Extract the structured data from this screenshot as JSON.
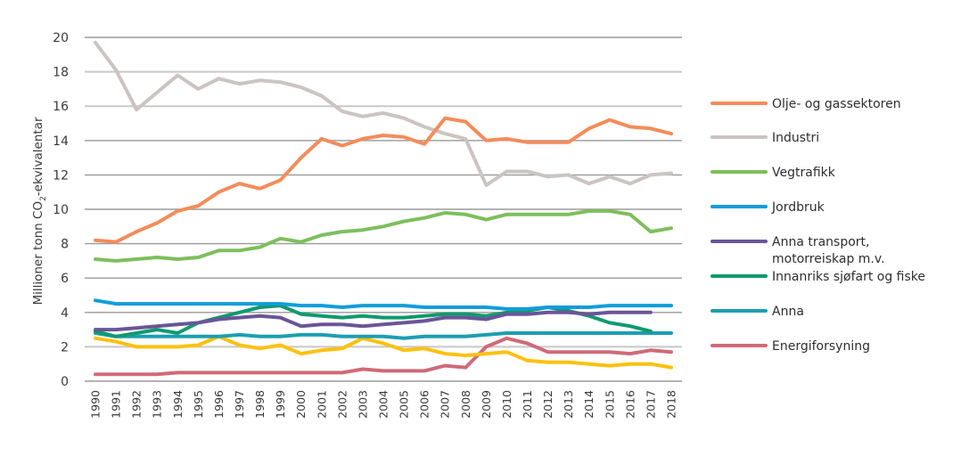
{
  "chart_data": {
    "type": "line",
    "title": "",
    "xlabel": "",
    "ylabel": "Millioner tonn CO₂-ekvivalentar",
    "ylabel_parts": {
      "before": "Millioner tonn CO",
      "sub": "2",
      "after": "-ekvivalentar"
    },
    "ylim": [
      0,
      20
    ],
    "yticks": [
      "0",
      "2",
      "4",
      "6",
      "8",
      "10",
      "12",
      "14",
      "16",
      "18",
      "20"
    ],
    "ytick_values": [
      0,
      2,
      4,
      6,
      8,
      10,
      12,
      14,
      16,
      18,
      20
    ],
    "grid": "horizontal",
    "legend_position": "right",
    "x": [
      "1990",
      "1991",
      "1992",
      "1993",
      "1994",
      "1995",
      "1996",
      "1997",
      "1998",
      "1999",
      "2000",
      "2001",
      "2002",
      "2003",
      "2004",
      "2005",
      "2006",
      "2007",
      "2008",
      "2009",
      "2010",
      "2011",
      "2012",
      "2013",
      "2014",
      "2015",
      "2016",
      "2017",
      "2018"
    ],
    "series": [
      {
        "name": "Olje- og gassektoren",
        "color": "#f48c5a",
        "legend": true,
        "values": [
          8.2,
          8.1,
          8.7,
          9.2,
          9.9,
          10.2,
          11.0,
          11.5,
          11.2,
          11.7,
          13.0,
          14.1,
          13.7,
          14.1,
          14.3,
          14.2,
          13.8,
          15.3,
          15.1,
          14.0,
          14.1,
          13.9,
          13.9,
          13.9,
          14.7,
          15.2,
          14.8,
          14.7,
          14.4
        ]
      },
      {
        "name": "Industri",
        "color": "#cbc4c2",
        "legend": true,
        "values": [
          19.7,
          18.1,
          15.8,
          16.8,
          17.8,
          17.0,
          17.6,
          17.3,
          17.5,
          17.4,
          17.1,
          16.6,
          15.7,
          15.4,
          15.6,
          15.3,
          14.8,
          14.4,
          14.1,
          11.4,
          12.2,
          12.2,
          11.9,
          12.0,
          11.5,
          11.9,
          11.5,
          12.0,
          12.1
        ]
      },
      {
        "name": "Vegtrafikk",
        "color": "#7dbf5c",
        "legend": true,
        "values": [
          7.1,
          7.0,
          7.1,
          7.2,
          7.1,
          7.2,
          7.6,
          7.6,
          7.8,
          8.3,
          8.1,
          8.5,
          8.7,
          8.8,
          9.0,
          9.3,
          9.5,
          9.8,
          9.7,
          9.4,
          9.7,
          9.7,
          9.7,
          9.7,
          9.9,
          9.9,
          9.7,
          8.7,
          8.9
        ]
      },
      {
        "name": "Jordbruk",
        "color": "#109ddb",
        "legend": true,
        "values": [
          4.7,
          4.5,
          4.5,
          4.5,
          4.5,
          4.5,
          4.5,
          4.5,
          4.5,
          4.5,
          4.4,
          4.4,
          4.3,
          4.4,
          4.4,
          4.4,
          4.3,
          4.3,
          4.3,
          4.3,
          4.2,
          4.2,
          4.3,
          4.3,
          4.3,
          4.4,
          4.4,
          4.4,
          4.4
        ]
      },
      {
        "name": "Anna transport, motorreiskap m.v.",
        "legend_lines": [
          "Anna transport,",
          "motorreiskap m.v."
        ],
        "color": "#6a5598",
        "legend": true,
        "values": [
          3.0,
          3.0,
          3.1,
          3.2,
          3.3,
          3.4,
          3.6,
          3.7,
          3.8,
          3.7,
          3.2,
          3.3,
          3.3,
          3.2,
          3.3,
          3.4,
          3.5,
          3.7,
          3.7,
          3.6,
          3.9,
          3.9,
          4.0,
          4.0,
          3.9,
          4.0,
          4.0,
          4.0,
          null
        ]
      },
      {
        "name": "Innanriks sjøfart og fiske",
        "color": "#109a6e",
        "legend": true,
        "values": [
          2.9,
          2.6,
          2.8,
          3.0,
          2.8,
          3.4,
          3.7,
          4.0,
          4.3,
          4.4,
          3.9,
          3.8,
          3.7,
          3.8,
          3.7,
          3.7,
          3.8,
          3.9,
          3.9,
          3.8,
          4.0,
          4.1,
          4.3,
          4.1,
          3.8,
          3.4,
          3.2,
          2.9,
          null
        ]
      },
      {
        "name": "Anna",
        "color": "#1b9fb0",
        "legend": true,
        "values": [
          2.8,
          2.6,
          2.6,
          2.6,
          2.6,
          2.6,
          2.6,
          2.7,
          2.6,
          2.6,
          2.7,
          2.7,
          2.6,
          2.6,
          2.6,
          2.5,
          2.6,
          2.6,
          2.6,
          2.7,
          2.8,
          2.8,
          2.8,
          2.8,
          2.8,
          2.8,
          2.8,
          2.8,
          2.8
        ]
      },
      {
        "name": "",
        "color": "#fcc10e",
        "legend": false,
        "values": [
          2.5,
          2.3,
          2.0,
          2.0,
          2.0,
          2.1,
          2.6,
          2.1,
          1.9,
          2.1,
          1.6,
          1.8,
          1.9,
          2.5,
          2.2,
          1.8,
          1.9,
          1.6,
          1.5,
          1.6,
          1.7,
          1.2,
          1.1,
          1.1,
          1.0,
          0.9,
          1.0,
          1.0,
          0.8
        ]
      },
      {
        "name": "Energiforsyning",
        "color": "#d06a78",
        "legend": true,
        "values": [
          0.4,
          0.4,
          0.4,
          0.4,
          0.5,
          0.5,
          0.5,
          0.5,
          0.5,
          0.5,
          0.5,
          0.5,
          0.5,
          0.7,
          0.6,
          0.6,
          0.6,
          0.9,
          0.8,
          2.0,
          2.5,
          2.2,
          1.7,
          1.7,
          1.7,
          1.7,
          1.6,
          1.8,
          1.7
        ]
      }
    ],
    "draw_order": [
      8,
      7,
      6,
      5,
      4,
      3,
      2,
      1,
      0
    ]
  }
}
